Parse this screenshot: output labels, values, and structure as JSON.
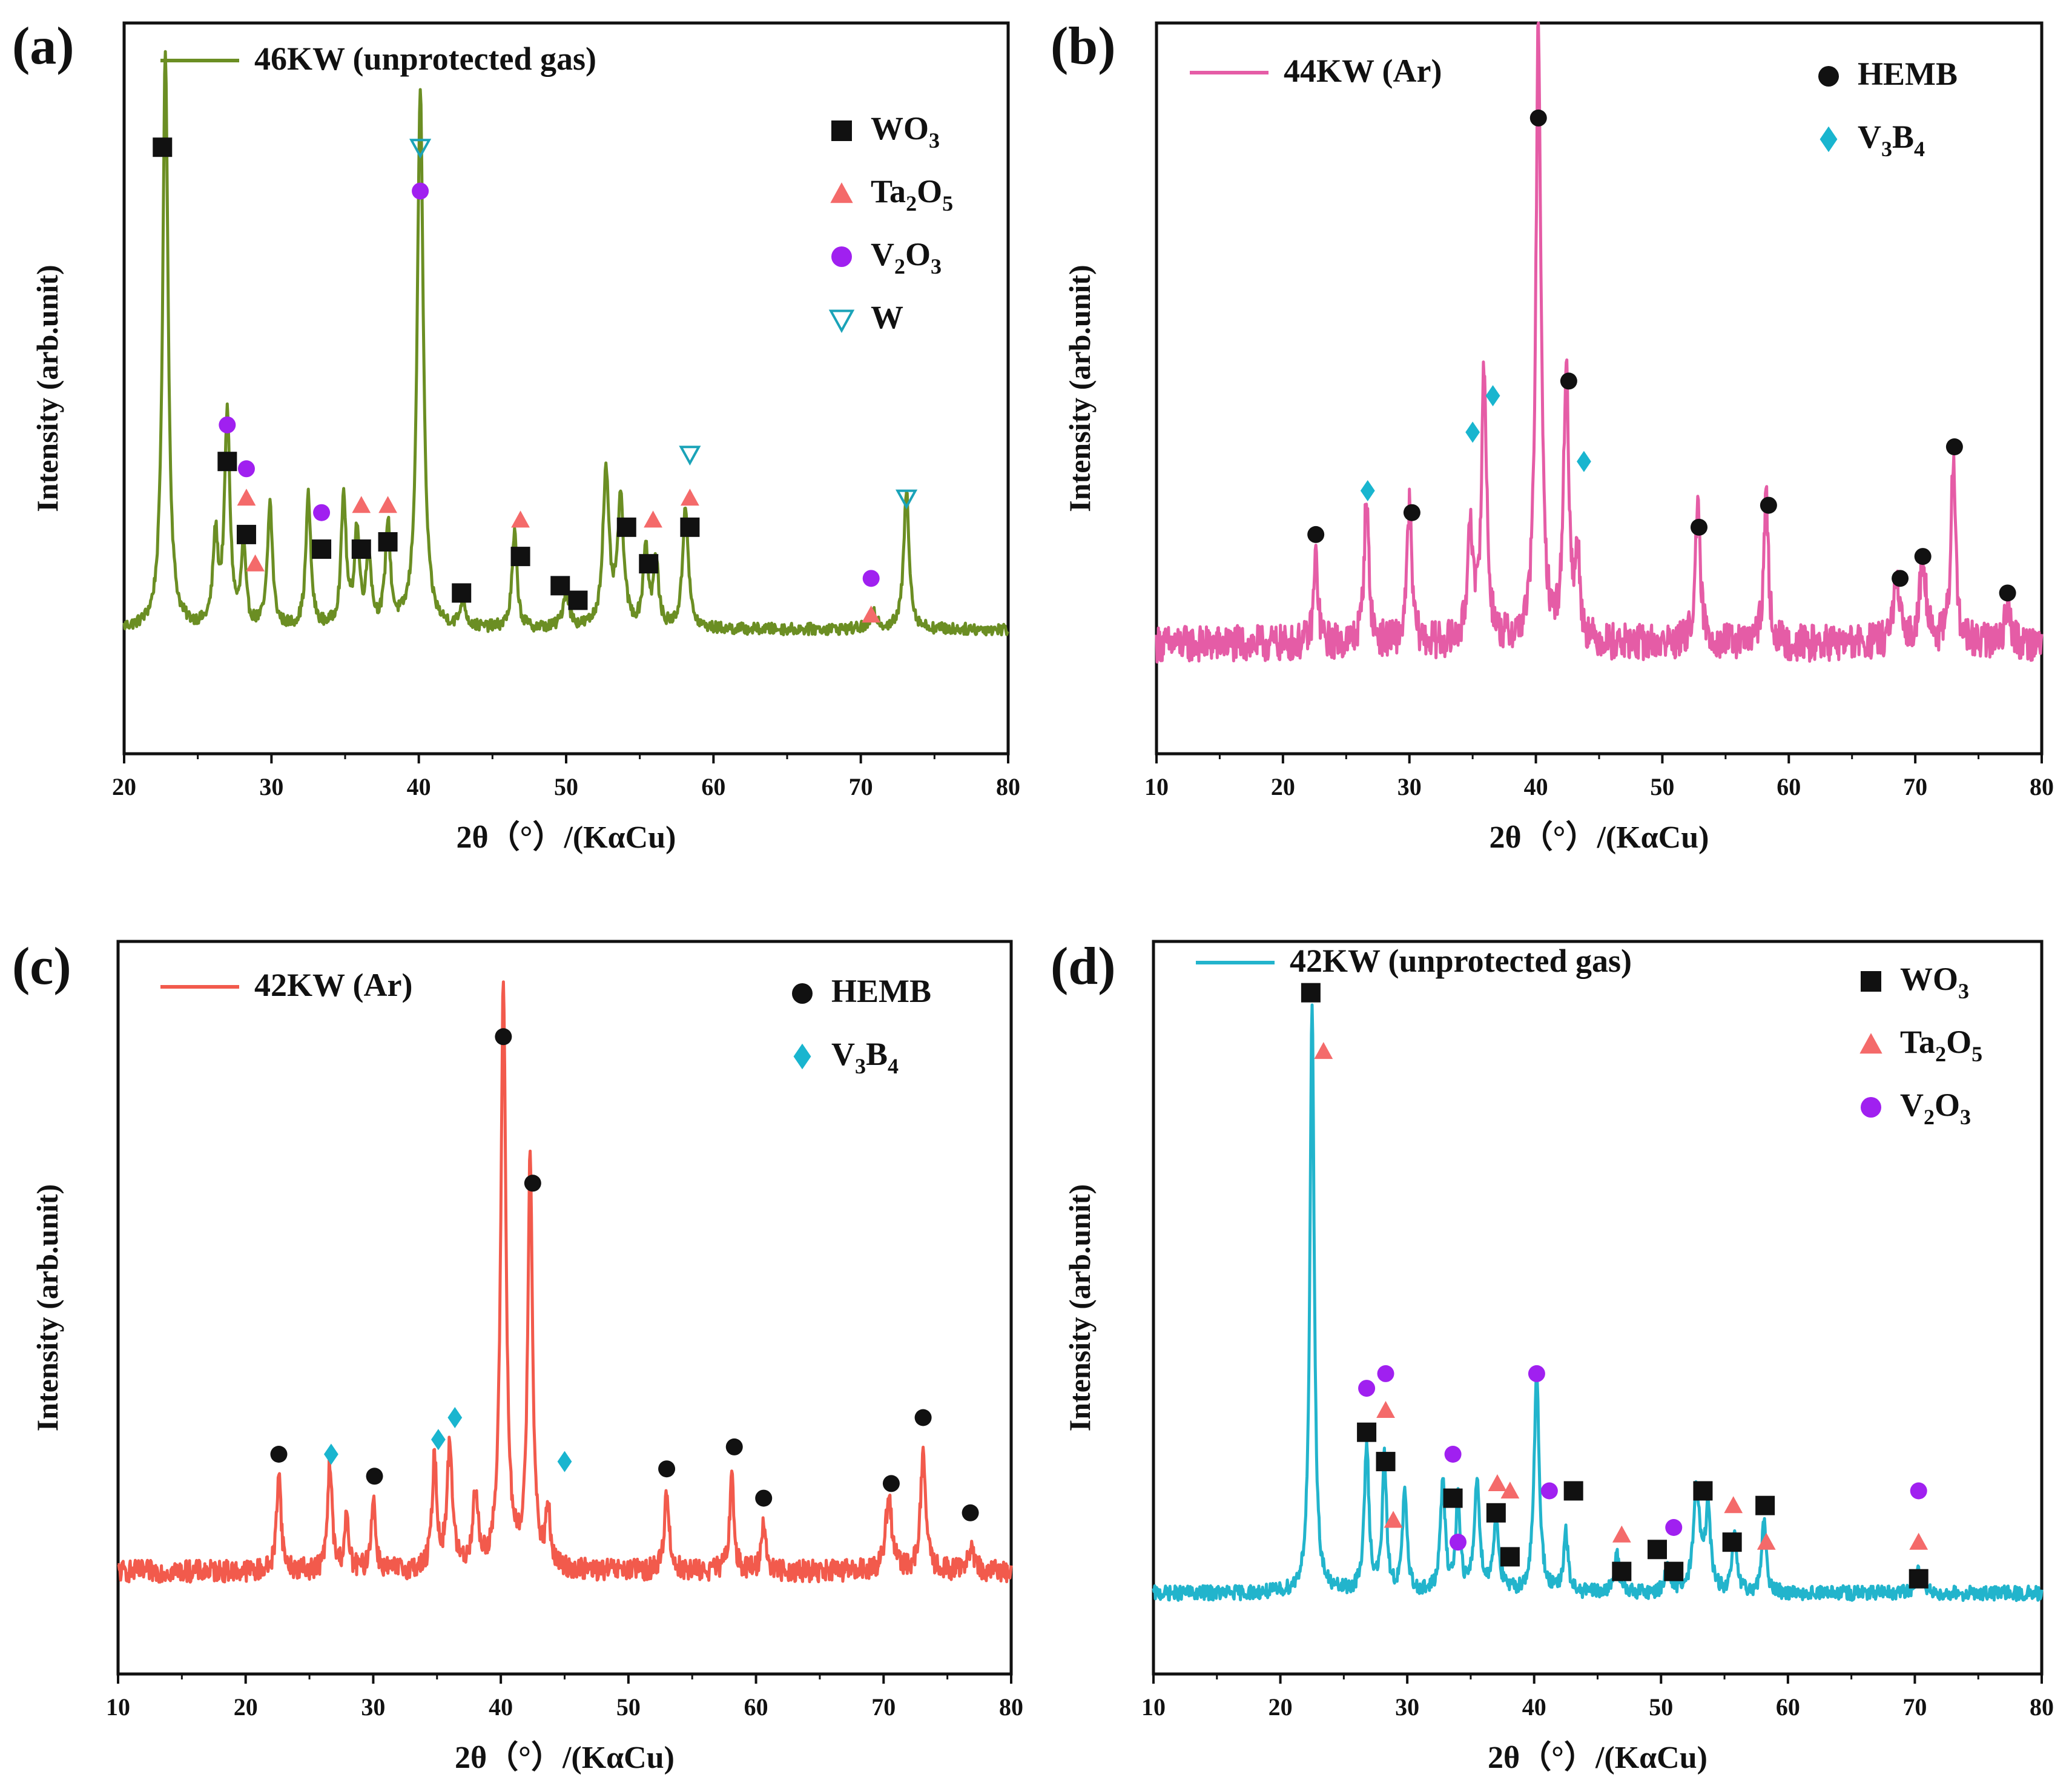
{
  "chart_data": [
    {
      "type": "line",
      "panel_label": "(a)",
      "xlabel": "2θ（°）/(KαCu)",
      "ylabel": "Intensity (arb.unit)",
      "xlim": [
        20,
        80
      ],
      "xticks": [
        20,
        30,
        40,
        50,
        60,
        70,
        80
      ],
      "ylim": [
        0,
        100
      ],
      "legend_placement": "top-right",
      "series": [
        {
          "name": "46KW (unprotected gas)",
          "color": "#6b8e23",
          "baseline": 17,
          "noise": 0.8,
          "peaks": [
            [
              22.8,
              79,
              0.22
            ],
            [
              26.2,
              12,
              0.2
            ],
            [
              27.0,
              29,
              0.22
            ],
            [
              28.1,
              11,
              0.18
            ],
            [
              29.9,
              17,
              0.2
            ],
            [
              32.5,
              18,
              0.2
            ],
            [
              34.9,
              18,
              0.2
            ],
            [
              35.8,
              13,
              0.2
            ],
            [
              36.6,
              10,
              0.2
            ],
            [
              37.9,
              14,
              0.2
            ],
            [
              40.1,
              74,
              0.24
            ],
            [
              43.0,
              4,
              0.2
            ],
            [
              46.5,
              13,
              0.2
            ],
            [
              50.0,
              5,
              0.25
            ],
            [
              52.7,
              21,
              0.25
            ],
            [
              53.7,
              17,
              0.25
            ],
            [
              55.4,
              11,
              0.2
            ],
            [
              56.1,
              9,
              0.2
            ],
            [
              58.1,
              17,
              0.22
            ],
            [
              70.9,
              2,
              0.3
            ],
            [
              73.1,
              19,
              0.22
            ]
          ]
        }
      ],
      "legend": [
        {
          "phase": "WO",
          "sub1": "3",
          "mid": "",
          "sub2": "",
          "marker": "square",
          "color": "#111111"
        },
        {
          "phase": "Ta",
          "sub1": "2",
          "mid": "O",
          "sub2": "5",
          "marker": "triangle",
          "color": "#f46a6a"
        },
        {
          "phase": "V",
          "sub1": "2",
          "mid": "O",
          "sub2": "3",
          "marker": "circle",
          "color": "#a020f0"
        },
        {
          "phase": "W",
          "sub1": "",
          "mid": "",
          "sub2": "",
          "marker": "triangle-down",
          "color": "#1aa3b8"
        }
      ],
      "annotations": [
        {
          "marker": "square",
          "x": 22.6,
          "y": 83
        },
        {
          "marker": "triangle-down",
          "x": 40.1,
          "y": 83
        },
        {
          "marker": "circle",
          "x": 40.1,
          "y": 77
        },
        {
          "marker": "circle",
          "x": 27.0,
          "y": 45
        },
        {
          "marker": "square",
          "x": 27.0,
          "y": 40
        },
        {
          "marker": "circle",
          "x": 28.3,
          "y": 39
        },
        {
          "marker": "triangle",
          "x": 28.3,
          "y": 35
        },
        {
          "marker": "square",
          "x": 28.3,
          "y": 30
        },
        {
          "marker": "triangle",
          "x": 28.9,
          "y": 26
        },
        {
          "marker": "circle",
          "x": 33.4,
          "y": 33
        },
        {
          "marker": "square",
          "x": 33.4,
          "y": 28
        },
        {
          "marker": "triangle",
          "x": 36.1,
          "y": 34
        },
        {
          "marker": "square",
          "x": 36.1,
          "y": 28
        },
        {
          "marker": "triangle",
          "x": 37.9,
          "y": 34
        },
        {
          "marker": "square",
          "x": 37.9,
          "y": 29
        },
        {
          "marker": "triangle",
          "x": 46.9,
          "y": 32
        },
        {
          "marker": "square",
          "x": 46.9,
          "y": 27
        },
        {
          "marker": "square",
          "x": 42.9,
          "y": 22
        },
        {
          "marker": "square",
          "x": 49.6,
          "y": 23
        },
        {
          "marker": "square",
          "x": 50.8,
          "y": 21
        },
        {
          "marker": "square",
          "x": 54.1,
          "y": 31
        },
        {
          "marker": "triangle",
          "x": 55.9,
          "y": 32
        },
        {
          "marker": "square",
          "x": 55.6,
          "y": 26
        },
        {
          "marker": "triangle-down",
          "x": 58.4,
          "y": 41
        },
        {
          "marker": "triangle",
          "x": 58.4,
          "y": 35
        },
        {
          "marker": "square",
          "x": 58.4,
          "y": 31
        },
        {
          "marker": "circle",
          "x": 70.7,
          "y": 24
        },
        {
          "marker": "triangle",
          "x": 70.7,
          "y": 19
        },
        {
          "marker": "triangle-down",
          "x": 73.1,
          "y": 35
        }
      ]
    },
    {
      "type": "line",
      "panel_label": "(b)",
      "xlabel": "2θ（°）/(KαCu)",
      "ylabel": "Intensity (arb.unit)",
      "xlim": [
        10,
        80
      ],
      "xticks": [
        10,
        20,
        30,
        40,
        50,
        60,
        70,
        80
      ],
      "ylim": [
        0,
        100
      ],
      "legend_placement": "top-right",
      "series": [
        {
          "name": "44KW (Ar)",
          "color": "#e55ca6",
          "baseline": 15,
          "noise": 2.5,
          "peaks": [
            [
              22.6,
              12,
              0.2
            ],
            [
              26.6,
              20,
              0.22
            ],
            [
              30.0,
              19,
              0.22
            ],
            [
              34.8,
              17,
              0.22
            ],
            [
              35.9,
              37,
              0.25
            ],
            [
              40.2,
              85,
              0.24
            ],
            [
              42.4,
              38,
              0.24
            ],
            [
              43.3,
              12,
              0.2
            ],
            [
              52.8,
              18,
              0.25
            ],
            [
              58.2,
              20,
              0.22
            ],
            [
              68.5,
              8,
              0.3
            ],
            [
              70.6,
              12,
              0.3
            ],
            [
              73.0,
              25,
              0.22
            ],
            [
              77.3,
              5,
              0.3
            ]
          ]
        }
      ],
      "legend": [
        {
          "phase": "HEMB",
          "sub1": "",
          "mid": "",
          "sub2": "",
          "marker": "circle",
          "color": "#111111"
        },
        {
          "phase": "V",
          "sub1": "3",
          "mid": "B",
          "sub2": "4",
          "marker": "diamond",
          "color": "#19b5cf"
        }
      ],
      "annotations": [
        {
          "marker": "circle",
          "x": 40.2,
          "y": 87
        },
        {
          "marker": "circle",
          "x": 22.6,
          "y": 30
        },
        {
          "marker": "diamond",
          "x": 26.7,
          "y": 36
        },
        {
          "marker": "circle",
          "x": 30.2,
          "y": 33
        },
        {
          "marker": "diamond",
          "x": 35.0,
          "y": 44
        },
        {
          "marker": "diamond",
          "x": 36.6,
          "y": 49
        },
        {
          "marker": "circle",
          "x": 42.6,
          "y": 51
        },
        {
          "marker": "diamond",
          "x": 43.8,
          "y": 40
        },
        {
          "marker": "circle",
          "x": 52.9,
          "y": 31
        },
        {
          "marker": "circle",
          "x": 58.4,
          "y": 34
        },
        {
          "marker": "circle",
          "x": 68.8,
          "y": 24
        },
        {
          "marker": "circle",
          "x": 70.6,
          "y": 27
        },
        {
          "marker": "circle",
          "x": 73.1,
          "y": 42
        },
        {
          "marker": "circle",
          "x": 77.3,
          "y": 22
        }
      ]
    },
    {
      "type": "line",
      "panel_label": "(c)",
      "xlabel": "2θ（°）/(KαCu)",
      "ylabel": "Intensity (arb.unit)",
      "xlim": [
        10,
        80
      ],
      "xticks": [
        10,
        20,
        30,
        40,
        50,
        60,
        70,
        80
      ],
      "ylim": [
        0,
        100
      ],
      "legend_placement": "top-right",
      "series": [
        {
          "name": "42KW (Ar)",
          "color": "#f25a4c",
          "baseline": 14,
          "noise": 1.5,
          "peaks": [
            [
              22.6,
              14,
              0.2
            ],
            [
              26.6,
              15,
              0.2
            ],
            [
              27.9,
              7,
              0.2
            ],
            [
              30.0,
              10,
              0.2
            ],
            [
              34.8,
              15,
              0.22
            ],
            [
              36.0,
              17,
              0.25
            ],
            [
              38.0,
              10,
              0.25
            ],
            [
              40.2,
              80,
              0.24
            ],
            [
              42.3,
              57,
              0.22
            ],
            [
              43.7,
              8,
              0.2
            ],
            [
              53.0,
              11,
              0.22
            ],
            [
              58.1,
              13,
              0.2
            ],
            [
              60.6,
              7,
              0.2
            ],
            [
              70.4,
              10,
              0.3
            ],
            [
              73.1,
              16,
              0.24
            ],
            [
              76.8,
              3,
              0.3
            ]
          ]
        }
      ],
      "legend": [
        {
          "phase": "HEMB",
          "sub1": "",
          "mid": "",
          "sub2": "",
          "marker": "circle",
          "color": "#111111"
        },
        {
          "phase": "V",
          "sub1": "3",
          "mid": "B",
          "sub2": "4",
          "marker": "diamond",
          "color": "#19b5cf"
        }
      ],
      "annotations": [
        {
          "marker": "circle",
          "x": 40.2,
          "y": 87
        },
        {
          "marker": "circle",
          "x": 42.5,
          "y": 67
        },
        {
          "marker": "circle",
          "x": 22.6,
          "y": 30
        },
        {
          "marker": "diamond",
          "x": 26.7,
          "y": 30
        },
        {
          "marker": "circle",
          "x": 30.1,
          "y": 27
        },
        {
          "marker": "diamond",
          "x": 35.1,
          "y": 32
        },
        {
          "marker": "diamond",
          "x": 36.4,
          "y": 35
        },
        {
          "marker": "diamond",
          "x": 45.0,
          "y": 29
        },
        {
          "marker": "circle",
          "x": 53.0,
          "y": 28
        },
        {
          "marker": "circle",
          "x": 58.3,
          "y": 31
        },
        {
          "marker": "circle",
          "x": 60.6,
          "y": 24
        },
        {
          "marker": "circle",
          "x": 70.6,
          "y": 26
        },
        {
          "marker": "circle",
          "x": 73.1,
          "y": 35
        },
        {
          "marker": "circle",
          "x": 76.8,
          "y": 22
        }
      ]
    },
    {
      "type": "line",
      "panel_label": "(d)",
      "xlabel": "2θ（°）/(KαCu)",
      "ylabel": "Intensity (arb.unit)",
      "xlim": [
        10,
        80
      ],
      "xticks": [
        10,
        20,
        30,
        40,
        50,
        60,
        70,
        80
      ],
      "ylim": [
        0,
        100
      ],
      "legend_placement": "top-right",
      "series": [
        {
          "name": "42KW (unprotected gas)",
          "color": "#22b4cc",
          "baseline": 11,
          "noise": 1.0,
          "peaks": [
            [
              22.5,
              80,
              0.2
            ],
            [
              26.8,
              20,
              0.22
            ],
            [
              28.2,
              18,
              0.2
            ],
            [
              29.8,
              14,
              0.2
            ],
            [
              32.8,
              15,
              0.22
            ],
            [
              34.0,
              13,
              0.2
            ],
            [
              35.5,
              15,
              0.25
            ],
            [
              37.0,
              10,
              0.25
            ],
            [
              40.2,
              30,
              0.24
            ],
            [
              42.5,
              8,
              0.2
            ],
            [
              46.5,
              6,
              0.2
            ],
            [
              50.5,
              4,
              0.2
            ],
            [
              52.8,
              14,
              0.3
            ],
            [
              53.7,
              11,
              0.25
            ],
            [
              55.8,
              8,
              0.2
            ],
            [
              58.1,
              10,
              0.2
            ],
            [
              70.3,
              3,
              0.3
            ]
          ]
        }
      ],
      "legend": [
        {
          "phase": "WO",
          "sub1": "3",
          "mid": "",
          "sub2": "",
          "marker": "square",
          "color": "#111111"
        },
        {
          "phase": "Ta",
          "sub1": "2",
          "mid": "O",
          "sub2": "5",
          "marker": "triangle",
          "color": "#f46a6a"
        },
        {
          "phase": "V",
          "sub1": "2",
          "mid": "O",
          "sub2": "3",
          "marker": "circle",
          "color": "#a020f0"
        }
      ],
      "annotations": [
        {
          "marker": "square",
          "x": 22.4,
          "y": 93
        },
        {
          "marker": "triangle",
          "x": 23.4,
          "y": 85
        },
        {
          "marker": "circle",
          "x": 26.8,
          "y": 39
        },
        {
          "marker": "square",
          "x": 26.8,
          "y": 33
        },
        {
          "marker": "circle",
          "x": 28.3,
          "y": 41
        },
        {
          "marker": "triangle",
          "x": 28.3,
          "y": 36
        },
        {
          "marker": "square",
          "x": 28.3,
          "y": 29
        },
        {
          "marker": "triangle",
          "x": 28.9,
          "y": 21
        },
        {
          "marker": "circle",
          "x": 33.6,
          "y": 30
        },
        {
          "marker": "square",
          "x": 33.6,
          "y": 24
        },
        {
          "marker": "circle",
          "x": 34.0,
          "y": 18
        },
        {
          "marker": "triangle",
          "x": 37.1,
          "y": 26
        },
        {
          "marker": "square",
          "x": 37.0,
          "y": 22
        },
        {
          "marker": "triangle",
          "x": 38.1,
          "y": 25
        },
        {
          "marker": "square",
          "x": 38.1,
          "y": 16
        },
        {
          "marker": "circle",
          "x": 40.2,
          "y": 41
        },
        {
          "marker": "circle",
          "x": 41.2,
          "y": 25
        },
        {
          "marker": "square",
          "x": 43.1,
          "y": 25
        },
        {
          "marker": "triangle",
          "x": 46.9,
          "y": 19
        },
        {
          "marker": "square",
          "x": 46.9,
          "y": 14
        },
        {
          "marker": "square",
          "x": 49.7,
          "y": 17
        },
        {
          "marker": "circle",
          "x": 51.0,
          "y": 20
        },
        {
          "marker": "square",
          "x": 51.0,
          "y": 14
        },
        {
          "marker": "square",
          "x": 53.3,
          "y": 25
        },
        {
          "marker": "triangle",
          "x": 55.7,
          "y": 23
        },
        {
          "marker": "square",
          "x": 55.6,
          "y": 18
        },
        {
          "marker": "triangle",
          "x": 58.3,
          "y": 18
        },
        {
          "marker": "square",
          "x": 58.2,
          "y": 23
        },
        {
          "marker": "circle",
          "x": 70.3,
          "y": 25
        },
        {
          "marker": "triangle",
          "x": 70.3,
          "y": 18
        },
        {
          "marker": "square",
          "x": 70.3,
          "y": 13
        }
      ]
    }
  ]
}
